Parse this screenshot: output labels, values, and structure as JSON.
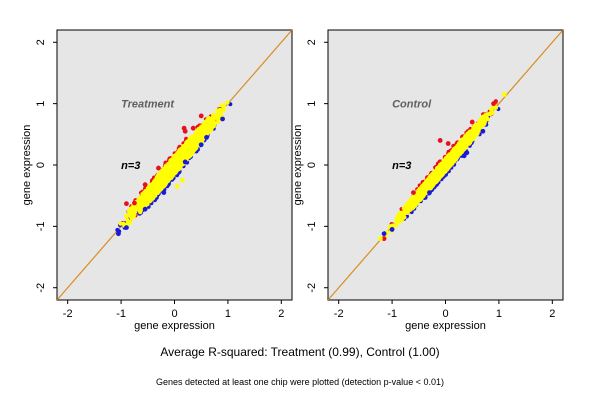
{
  "figure": {
    "caption": "Average R-squared: Treatment (0.99), Control (1.00)",
    "footnote": "Genes detected at least one chip were plotted (detection p-value < 0.01)"
  },
  "colors": {
    "panel_background": "#e6e6e6",
    "identity_line": "#d98c20",
    "low_points": "#1a1adc",
    "high_points": "#e8101e",
    "core_points": "#ffff00"
  },
  "chart_data": [
    {
      "type": "scatter",
      "title": "Treatment",
      "annotation": "n=3",
      "xlabel": "gene expression",
      "ylabel": "gene expression",
      "xlim": [
        -2.2,
        2.2
      ],
      "ylim": [
        -2.2,
        2.2
      ],
      "xticks": [
        -2,
        -1,
        0,
        1,
        2
      ],
      "yticks": [
        -2,
        -1,
        0,
        1,
        2
      ],
      "grid": false,
      "reference_line": {
        "slope": 1,
        "intercept": 0
      },
      "cloud": {
        "x_range": [
          -1.15,
          1.15
        ],
        "spread": 0.17,
        "slope": 1.0
      },
      "series": [
        {
          "color": "#1a1adc",
          "points": [
            [
              -1.05,
              -1.12
            ],
            [
              -0.9,
              -1.02
            ],
            [
              -0.55,
              -0.72
            ],
            [
              0.2,
              0.05
            ],
            [
              0.5,
              0.33
            ],
            [
              0.6,
              0.45
            ],
            [
              -0.2,
              -0.45
            ],
            [
              0.9,
              0.75
            ]
          ]
        },
        {
          "color": "#e8101e",
          "points": [
            [
              -0.9,
              -0.63
            ],
            [
              -0.55,
              -0.32
            ],
            [
              0.2,
              0.55
            ],
            [
              0.18,
              0.6
            ],
            [
              0.5,
              0.8
            ],
            [
              -0.75,
              -0.62
            ],
            [
              -0.3,
              -0.05
            ],
            [
              0.35,
              0.6
            ]
          ]
        },
        {
          "color": "#ffff00",
          "points": [
            [
              0.05,
              -0.35
            ],
            [
              -0.05,
              -0.15
            ],
            [
              0.15,
              -0.25
            ]
          ]
        }
      ]
    },
    {
      "type": "scatter",
      "title": "Control",
      "annotation": "n=3",
      "xlabel": "gene expression",
      "ylabel": "gene expression",
      "xlim": [
        -2.2,
        2.2
      ],
      "ylim": [
        -2.2,
        2.2
      ],
      "xticks": [
        -2,
        -1,
        0,
        1,
        2
      ],
      "yticks": [
        -2,
        -1,
        0,
        1,
        2
      ],
      "grid": false,
      "reference_line": {
        "slope": 1,
        "intercept": 0
      },
      "cloud": {
        "x_range": [
          -1.2,
          1.15
        ],
        "spread": 0.12,
        "slope": 1.0
      },
      "series": [
        {
          "color": "#1a1adc",
          "points": [
            [
              -1.15,
              -1.12
            ],
            [
              -1.0,
              -1.05
            ],
            [
              0.35,
              0.15
            ],
            [
              0.4,
              0.2
            ],
            [
              -0.3,
              -0.45
            ],
            [
              0.7,
              0.55
            ]
          ]
        },
        {
          "color": "#e8101e",
          "points": [
            [
              -1.15,
              -1.2
            ],
            [
              -0.1,
              0.4
            ],
            [
              0.05,
              0.35
            ],
            [
              -0.6,
              -0.45
            ],
            [
              0.5,
              0.7
            ],
            [
              0.9,
              1.0
            ]
          ]
        },
        {
          "color": "#ffff00",
          "points": [
            [
              -1.22,
              -1.2
            ],
            [
              1.1,
              1.15
            ]
          ]
        }
      ]
    }
  ]
}
